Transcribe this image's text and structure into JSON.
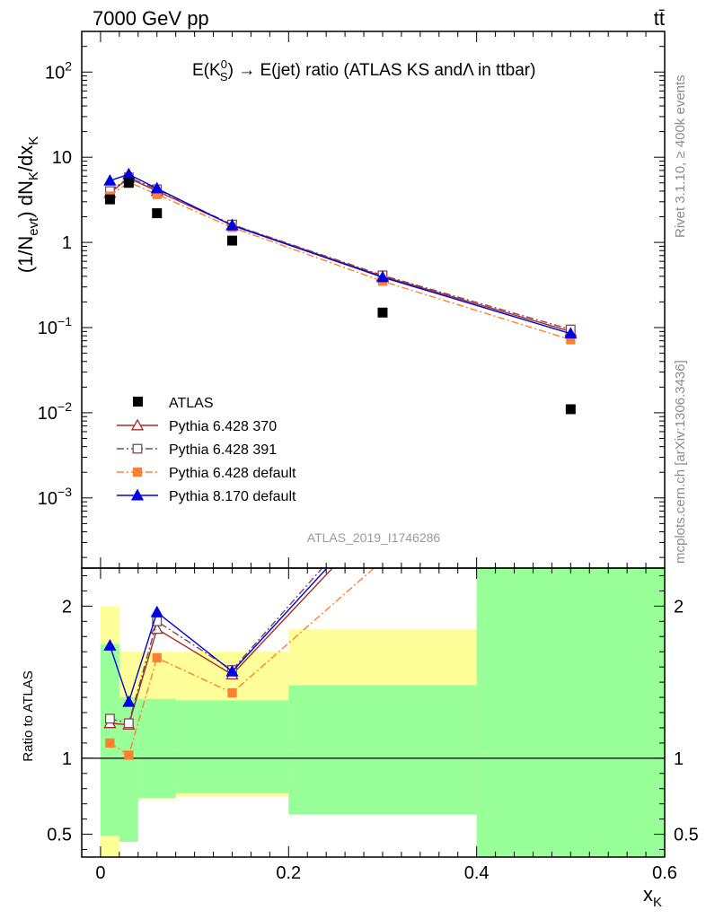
{
  "header": {
    "energy": "7000 GeV pp",
    "process": "tt̄"
  },
  "title": {
    "prefix": "E(K",
    "sup": "0",
    "sub": "S",
    "suffix": ") → E(jet) ratio (ATLAS KS andΛ in ttbar)"
  },
  "side_labels": {
    "rivet": "Rivet 3.1.10, ≥ 400k events",
    "mcplots": "mcplots.cern.ch [arXiv:1306.3436]"
  },
  "analysis_tag": "ATLAS_2019_I1746286",
  "ylabel_main": {
    "a": "(1/N",
    "b": "evt",
    "c": ") dN",
    "d": "K",
    "e": "/dx",
    "f": "K"
  },
  "ylabel_ratio": "Ratio to ATLAS",
  "xlabel": {
    "main": "x",
    "sub": "K"
  },
  "colors": {
    "band_outer": "#ffff99",
    "band_inner": "#99ff99"
  },
  "chart_data": {
    "type": "scatter",
    "log_y_main": true,
    "xlim": [
      -0.02,
      0.6
    ],
    "ylim_main": [
      0.00015,
      300
    ],
    "ylim_ratio": [
      0.35,
      2.25
    ],
    "x_ticks": [
      "0",
      "0.2",
      "0.4",
      "0.6"
    ],
    "y_ticks_main": [
      "10",
      "1",
      "10"
    ],
    "y_ticks_main_sup": [
      "2",
      "",
      "",
      "−1",
      "−2",
      "−3"
    ],
    "y_ticks_ratio": [
      "2",
      "1",
      "0.5"
    ],
    "x_values": [
      0.01,
      0.03,
      0.06,
      0.14,
      0.3,
      0.5
    ],
    "bin_edges": [
      0.0,
      0.02,
      0.04,
      0.08,
      0.2,
      0.4,
      0.6
    ],
    "data": {
      "name": "ATLAS",
      "values": [
        3.2,
        5.0,
        2.2,
        1.05,
        0.15,
        0.011
      ]
    },
    "series": [
      {
        "name": "Pythia 6.428 370",
        "color": "#a52a2a",
        "marker": "triangle-open",
        "dash": "solid",
        "values": [
          3.8,
          5.7,
          4.0,
          1.6,
          0.4,
          0.09
        ],
        "ratio": [
          1.23,
          1.22,
          1.85,
          1.55,
          2.6,
          8.2
        ]
      },
      {
        "name": "Pythia 6.428 391",
        "color": "#7b4a55",
        "marker": "square-open",
        "dash": "dashdot",
        "values": [
          4.0,
          5.8,
          4.2,
          1.62,
          0.41,
          0.095
        ],
        "ratio": [
          1.26,
          1.23,
          1.9,
          1.58,
          2.7,
          8.6
        ]
      },
      {
        "name": "Pythia 6.428 default",
        "color": "#ff8030",
        "marker": "square",
        "dash": "dashdot",
        "values": [
          3.5,
          5.1,
          3.65,
          1.5,
          0.35,
          0.072
        ],
        "ratio": [
          1.1,
          1.02,
          1.66,
          1.43,
          2.3,
          6.5
        ]
      },
      {
        "name": "Pythia 8.170 default",
        "color": "#0000e0",
        "marker": "triangle",
        "dash": "solid",
        "values": [
          5.3,
          6.3,
          4.3,
          1.58,
          0.39,
          0.085
        ],
        "ratio": [
          1.74,
          1.37,
          1.96,
          1.57,
          2.65,
          7.8
        ]
      }
    ],
    "ratio_bands": {
      "outer": [
        [
          0.0,
          2.0
        ],
        [
          0.72,
          1.7
        ],
        [
          0.73,
          1.7
        ],
        [
          0.75,
          1.7
        ],
        [
          0.64,
          1.85
        ],
        [
          0.3,
          2.3
        ]
      ],
      "inner": [
        [
          0.49,
          1.75
        ],
        [
          0.45,
          1.4
        ],
        [
          0.74,
          1.39
        ],
        [
          0.77,
          1.38
        ],
        [
          0.63,
          1.48
        ],
        [
          0.3,
          2.3
        ]
      ]
    }
  }
}
